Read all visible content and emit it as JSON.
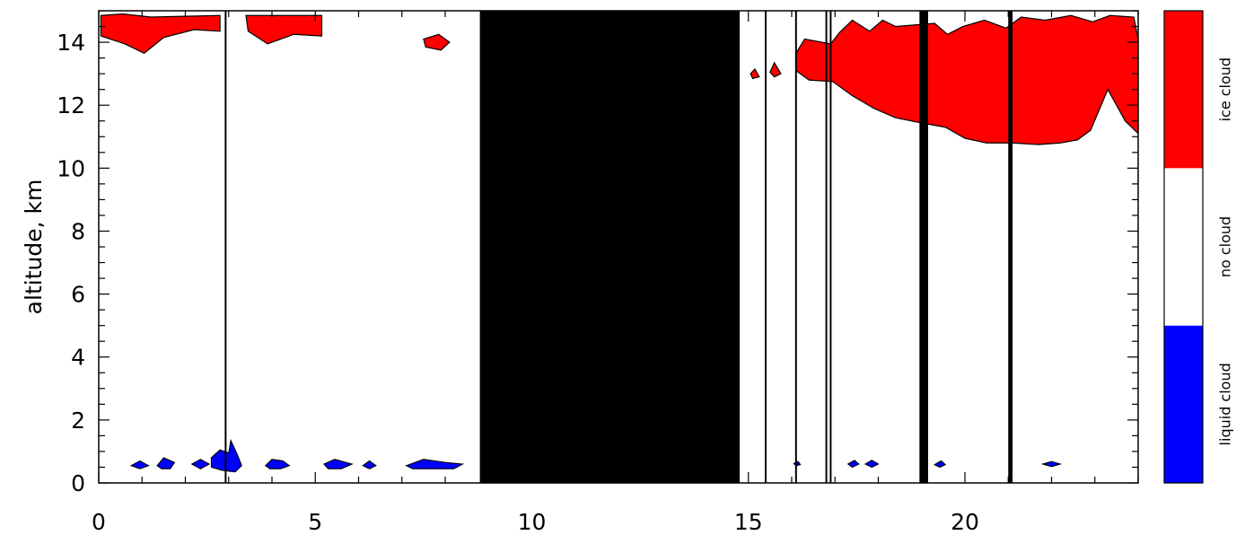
{
  "chart_data": {
    "type": "heatmap",
    "title": "",
    "xlabel": "",
    "ylabel": "altitude,  km",
    "xlim": [
      0,
      24
    ],
    "ylim": [
      0,
      15
    ],
    "x_ticks": [
      "0",
      "5",
      "10",
      "15",
      "20"
    ],
    "y_ticks": [
      "0",
      "2",
      "4",
      "6",
      "8",
      "10",
      "12",
      "14"
    ],
    "categories": [
      "liquid cloud",
      "no cloud",
      "ice cloud"
    ],
    "colors": {
      "liquid": "#0000ff",
      "no_cloud": "#ffffff",
      "ice": "#ff0000",
      "missing": "#000000",
      "outline": "#000000"
    },
    "no_data_intervals": [
      [
        8.8,
        14.8
      ],
      [
        18.95,
        19.15
      ],
      [
        21.0,
        21.1
      ]
    ],
    "vertical_lines": [
      2.93,
      15.4,
      16.1,
      16.8,
      16.9
    ],
    "ice_cloud_regions": [
      {
        "points": [
          [
            0.05,
            14.85
          ],
          [
            0.55,
            14.9
          ],
          [
            1.2,
            14.8
          ],
          [
            2.8,
            14.85
          ],
          [
            2.8,
            14.35
          ],
          [
            2.2,
            14.4
          ],
          [
            1.5,
            14.15
          ],
          [
            1.05,
            13.65
          ],
          [
            0.6,
            13.95
          ],
          [
            0.05,
            14.2
          ]
        ]
      },
      {
        "points": [
          [
            3.4,
            14.85
          ],
          [
            5.15,
            14.85
          ],
          [
            5.15,
            14.2
          ],
          [
            4.5,
            14.25
          ],
          [
            3.9,
            13.95
          ],
          [
            3.45,
            14.35
          ]
        ]
      },
      {
        "points": [
          [
            7.5,
            14.1
          ],
          [
            7.85,
            14.25
          ],
          [
            8.1,
            14.0
          ],
          [
            7.9,
            13.75
          ],
          [
            7.55,
            13.85
          ]
        ]
      },
      {
        "points": [
          [
            16.1,
            13.65
          ],
          [
            16.3,
            14.1
          ],
          [
            16.9,
            13.95
          ],
          [
            17.1,
            14.3
          ],
          [
            17.4,
            14.7
          ],
          [
            17.8,
            14.35
          ],
          [
            18.1,
            14.7
          ],
          [
            18.4,
            14.5
          ],
          [
            18.85,
            14.55
          ],
          [
            19.3,
            14.6
          ],
          [
            19.6,
            14.25
          ],
          [
            19.95,
            14.5
          ],
          [
            20.45,
            14.7
          ],
          [
            20.95,
            14.45
          ],
          [
            21.3,
            14.8
          ],
          [
            21.85,
            14.7
          ],
          [
            22.45,
            14.85
          ],
          [
            22.95,
            14.65
          ],
          [
            23.35,
            14.85
          ],
          [
            23.9,
            14.8
          ],
          [
            24.0,
            14.1
          ],
          [
            24.0,
            11.1
          ],
          [
            23.7,
            11.5
          ],
          [
            23.3,
            12.5
          ],
          [
            22.9,
            11.2
          ],
          [
            22.6,
            10.9
          ],
          [
            22.2,
            10.8
          ],
          [
            21.7,
            10.75
          ],
          [
            21.1,
            10.8
          ],
          [
            20.5,
            10.8
          ],
          [
            20.0,
            10.95
          ],
          [
            19.55,
            11.3
          ],
          [
            18.95,
            11.45
          ],
          [
            18.4,
            11.6
          ],
          [
            17.9,
            11.9
          ],
          [
            17.4,
            12.3
          ],
          [
            16.95,
            12.75
          ],
          [
            16.4,
            12.8
          ],
          [
            16.1,
            13.1
          ]
        ]
      },
      {
        "points": [
          [
            15.05,
            13.0
          ],
          [
            15.15,
            13.15
          ],
          [
            15.25,
            12.9
          ],
          [
            15.1,
            12.85
          ]
        ]
      },
      {
        "points": [
          [
            15.5,
            13.05
          ],
          [
            15.6,
            13.35
          ],
          [
            15.75,
            13.0
          ],
          [
            15.6,
            12.9
          ]
        ]
      }
    ],
    "liquid_cloud_regions": [
      {
        "points": [
          [
            0.75,
            0.55
          ],
          [
            0.95,
            0.7
          ],
          [
            1.15,
            0.55
          ],
          [
            0.95,
            0.45
          ]
        ]
      },
      {
        "points": [
          [
            1.35,
            0.55
          ],
          [
            1.5,
            0.8
          ],
          [
            1.75,
            0.65
          ],
          [
            1.65,
            0.45
          ],
          [
            1.45,
            0.45
          ]
        ]
      },
      {
        "points": [
          [
            2.15,
            0.6
          ],
          [
            2.35,
            0.75
          ],
          [
            2.55,
            0.6
          ],
          [
            2.35,
            0.45
          ]
        ]
      },
      {
        "points": [
          [
            2.6,
            0.5
          ],
          [
            2.6,
            0.8
          ],
          [
            2.8,
            1.05
          ],
          [
            3.0,
            0.95
          ],
          [
            3.05,
            1.35
          ],
          [
            3.2,
            0.9
          ],
          [
            3.3,
            0.55
          ],
          [
            3.15,
            0.35
          ],
          [
            2.85,
            0.4
          ]
        ]
      },
      {
        "points": [
          [
            3.85,
            0.55
          ],
          [
            4.0,
            0.75
          ],
          [
            4.25,
            0.7
          ],
          [
            4.4,
            0.55
          ],
          [
            4.2,
            0.45
          ],
          [
            3.95,
            0.45
          ]
        ]
      },
      {
        "points": [
          [
            5.2,
            0.6
          ],
          [
            5.45,
            0.75
          ],
          [
            5.85,
            0.6
          ],
          [
            5.6,
            0.45
          ],
          [
            5.3,
            0.45
          ]
        ]
      },
      {
        "points": [
          [
            6.1,
            0.55
          ],
          [
            6.25,
            0.7
          ],
          [
            6.4,
            0.55
          ],
          [
            6.25,
            0.45
          ]
        ]
      },
      {
        "points": [
          [
            7.1,
            0.55
          ],
          [
            7.5,
            0.75
          ],
          [
            8.0,
            0.65
          ],
          [
            8.4,
            0.6
          ],
          [
            8.2,
            0.45
          ],
          [
            7.7,
            0.45
          ],
          [
            7.25,
            0.45
          ]
        ]
      },
      {
        "points": [
          [
            16.05,
            0.62
          ],
          [
            16.15,
            0.68
          ],
          [
            16.2,
            0.58
          ],
          [
            16.1,
            0.55
          ]
        ]
      },
      {
        "points": [
          [
            17.3,
            0.6
          ],
          [
            17.45,
            0.72
          ],
          [
            17.55,
            0.6
          ],
          [
            17.4,
            0.5
          ]
        ]
      },
      {
        "points": [
          [
            17.7,
            0.6
          ],
          [
            17.85,
            0.72
          ],
          [
            18.0,
            0.6
          ],
          [
            17.85,
            0.5
          ]
        ]
      },
      {
        "points": [
          [
            19.3,
            0.58
          ],
          [
            19.45,
            0.7
          ],
          [
            19.55,
            0.58
          ],
          [
            19.42,
            0.5
          ]
        ]
      },
      {
        "points": [
          [
            21.8,
            0.6
          ],
          [
            22.0,
            0.68
          ],
          [
            22.2,
            0.6
          ],
          [
            22.0,
            0.52
          ]
        ]
      }
    ]
  }
}
